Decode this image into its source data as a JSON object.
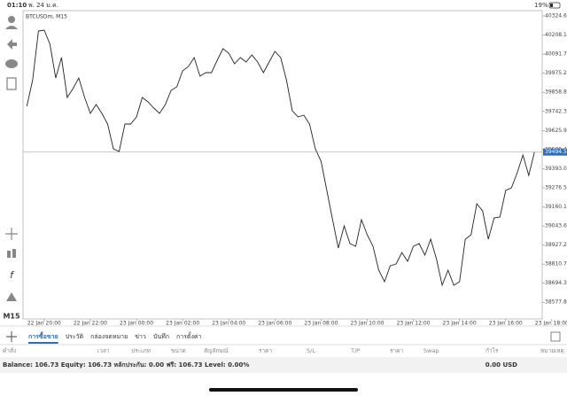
{
  "status_bar": {
    "time": "01:10",
    "date": "พ. 24 ม.ค.",
    "battery": "19%"
  },
  "sidebar": {
    "timeframe": "M15"
  },
  "chart_data": {
    "type": "line",
    "title": "BTCUSDm, M15",
    "color": "#222222",
    "x": [
      "22 Jan 19:15",
      "22 Jan 19:30",
      "22 Jan 19:45",
      "22 Jan 20:00",
      "22 Jan 20:15",
      "22 Jan 20:30",
      "22 Jan 20:45",
      "22 Jan 21:00",
      "22 Jan 21:15",
      "22 Jan 21:30",
      "22 Jan 21:45",
      "22 Jan 22:00",
      "22 Jan 22:15",
      "22 Jan 22:30",
      "22 Jan 22:45",
      "22 Jan 23:00",
      "22 Jan 23:15",
      "22 Jan 23:30",
      "22 Jan 23:45",
      "23 Jan 00:00",
      "23 Jan 00:15",
      "23 Jan 00:30",
      "23 Jan 00:45",
      "23 Jan 01:00",
      "23 Jan 01:15",
      "23 Jan 01:30",
      "23 Jan 01:45",
      "23 Jan 02:00",
      "23 Jan 02:15",
      "23 Jan 02:30",
      "23 Jan 02:45",
      "23 Jan 03:00",
      "23 Jan 03:15",
      "23 Jan 03:30",
      "23 Jan 03:45",
      "23 Jan 04:00",
      "23 Jan 04:15",
      "23 Jan 04:30",
      "23 Jan 04:45",
      "23 Jan 05:00",
      "23 Jan 05:15",
      "23 Jan 05:30",
      "23 Jan 05:45",
      "23 Jan 06:00",
      "23 Jan 06:15",
      "23 Jan 06:30",
      "23 Jan 06:45",
      "23 Jan 07:00",
      "23 Jan 07:15",
      "23 Jan 07:30",
      "23 Jan 07:45",
      "23 Jan 08:00",
      "23 Jan 08:15",
      "23 Jan 08:30",
      "23 Jan 08:45",
      "23 Jan 09:00",
      "23 Jan 09:15",
      "23 Jan 09:30",
      "23 Jan 09:45",
      "23 Jan 10:00",
      "23 Jan 10:15",
      "23 Jan 10:30",
      "23 Jan 10:45",
      "23 Jan 11:00",
      "23 Jan 11:15",
      "23 Jan 11:30",
      "23 Jan 11:45",
      "23 Jan 12:00",
      "23 Jan 12:15",
      "23 Jan 12:30",
      "23 Jan 12:45",
      "23 Jan 13:00",
      "23 Jan 13:15",
      "23 Jan 13:30",
      "23 Jan 13:45",
      "23 Jan 14:00",
      "23 Jan 14:15",
      "23 Jan 14:30",
      "23 Jan 14:45",
      "23 Jan 15:00",
      "23 Jan 15:15",
      "23 Jan 15:30",
      "23 Jan 15:45",
      "23 Jan 16:00",
      "23 Jan 16:15",
      "23 Jan 16:30",
      "23 Jan 16:45",
      "23 Jan 17:00",
      "23 Jan 17:15"
    ],
    "values": [
      39773.4,
      39935.6,
      40232.8,
      40238.2,
      40151.7,
      39946.4,
      40070.7,
      39827.5,
      39881.5,
      39946.4,
      39827.5,
      39730.2,
      39784.3,
      39730.2,
      39665.4,
      39514.0,
      39497.8,
      39665.4,
      39665.4,
      39708.6,
      39827.5,
      39800.5,
      39762.6,
      39730.2,
      39784.3,
      39870.7,
      39892.3,
      39989.6,
      40016.6,
      40070.7,
      39957.2,
      39978.8,
      39978.8,
      40054.5,
      40124.7,
      40097.7,
      40032.8,
      40070.7,
      40043.6,
      40086.9,
      40043.6,
      39978.8,
      40043.6,
      40108.5,
      40070.7,
      39935.6,
      39746.4,
      39708.6,
      39719.4,
      39665.4,
      39514.0,
      39438.4,
      39260.1,
      39081.8,
      38908.9,
      39044.0,
      38935.9,
      38919.6,
      39081.8,
      38989.9,
      38919.6,
      38773.7,
      38703.5,
      38800.7,
      38811.6,
      38881.8,
      38827.8,
      38919.6,
      38935.9,
      38865.6,
      38962.9,
      38844.0,
      38681.8,
      38773.7,
      38681.8,
      38703.5,
      38962.9,
      38989.9,
      39179.0,
      39135.8,
      38962.9,
      39092.5,
      39097.9,
      39260.1,
      39276.3,
      39368.2,
      39476.2,
      39351.9,
      39494.55
    ],
    "xlim": [
      "22 Jan 19:05",
      "23 Jan 17:35"
    ],
    "xticks": [
      "22 Jan 20:00",
      "22 Jan 22:00",
      "23 Jan 00:00",
      "23 Jan 02:00",
      "23 Jan 04:00",
      "23 Jan 06:00",
      "23 Jan 08:00",
      "23 Jan 10:00",
      "23 Jan 12:00",
      "23 Jan 14:00",
      "23 Jan 16:00",
      "23 Jan 18:00"
    ],
    "ylim": [
      38476.5,
      40357.1
    ],
    "yticks": [
      40324.65,
      40208.15,
      {
        "value": 40091.7,
        "label": "40091.70"
      },
      39975.25,
      {
        "value": 39858.8,
        "label": "39858.80"
      },
      39742.35,
      {
        "value": 39625.9,
        "label": "39625.90"
      },
      39509.45,
      {
        "value": 39393,
        "label": "39393.00"
      },
      39276.55,
      {
        "value": 39160.1,
        "label": "39160.10"
      },
      39043.65,
      {
        "value": 38927.2,
        "label": "38927.20"
      },
      38810.75,
      {
        "value": 38694.3,
        "label": "38694.30"
      },
      38577.85
    ],
    "last_price": 39494.55,
    "last_price_color": "#2e6fb6"
  },
  "tabs": [
    "การซื้อขาย",
    "ประวัติ",
    "กล่องจดหมาย",
    "ข่าว",
    "บันทึก",
    "การตั้งค่า"
  ],
  "table": {
    "headers": [
      "คำสั่ง",
      "เวลา",
      "ประเภท",
      "ขนาด",
      "สัญลักษณ์",
      "ราคา",
      "S/L",
      "T/P",
      "ราคา",
      "Swap",
      "กำไร",
      "หมายเหตุ"
    ]
  },
  "account": {
    "summary": "Balance: 106.73 Equity: 106.73 หลักประกัน: 0.00 ฟรี: 106.73 Level: 0.00%",
    "profit": "0.00 USD"
  }
}
